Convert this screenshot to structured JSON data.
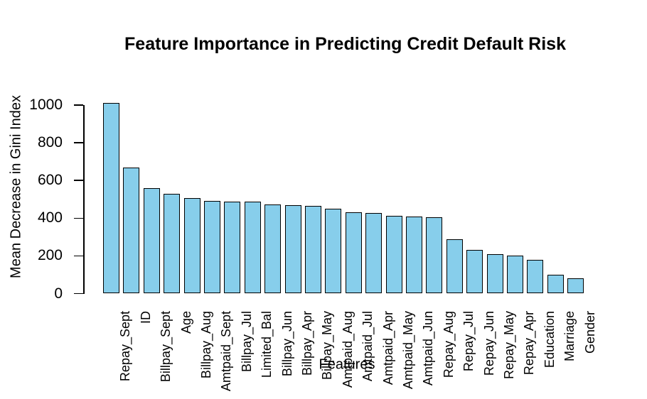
{
  "chart_data": {
    "type": "bar",
    "title": "Feature Importance in Predicting Credit Default Risk",
    "xlabel": "Features",
    "ylabel": "Mean Decrease in Gini Index",
    "categories": [
      "Repay_Sept",
      "ID",
      "Billpay_Sept",
      "Age",
      "Billpay_Aug",
      "Amtpaid_Sept",
      "Billpay_Jul",
      "Limited_Bal",
      "Billpay_Jun",
      "Billpay_Apr",
      "Billpay_May",
      "Amtpaid_Aug",
      "Amtpaid_Jul",
      "Amtpaid_Apr",
      "Amtpaid_May",
      "Amtpaid_Jun",
      "Repay_Aug",
      "Repay_Jul",
      "Repay_Jun",
      "Repay_May",
      "Repay_Apr",
      "Education",
      "Marriage",
      "Gender"
    ],
    "values": [
      1010,
      667,
      560,
      529,
      508,
      490,
      489,
      488,
      471,
      470,
      465,
      450,
      431,
      427,
      411,
      408,
      405,
      287,
      230,
      210,
      203,
      178,
      101,
      82
    ],
    "ylim": [
      0,
      1000
    ],
    "yticks": [
      0,
      200,
      400,
      600,
      800,
      1000
    ],
    "grid": false,
    "legend": "none",
    "x_tick_label_rotation_deg": 90,
    "bar_color": "#87CEEB",
    "bar_border_color": "#000000",
    "axis_color": "#000000",
    "background": "#FFFFFF"
  }
}
